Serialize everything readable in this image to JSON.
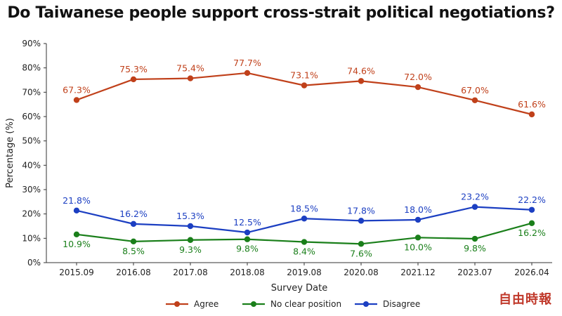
{
  "chart_data": {
    "type": "line",
    "title": "Do Taiwanese people support cross-strait political negotiations?",
    "xlabel": "Survey Date",
    "ylabel": "Percentage (%)",
    "ylim": [
      0,
      90
    ],
    "yticks": [
      "0%",
      "10%",
      "20%",
      "30%",
      "40%",
      "50%",
      "60%",
      "70%",
      "80%",
      "90%"
    ],
    "categories": [
      "2015.09",
      "2016.08",
      "2017.08",
      "2018.08",
      "2019.08",
      "2020.08",
      "2021.12",
      "2023.07",
      "2026.04"
    ],
    "series": [
      {
        "name": "Agree",
        "color": "#c0401a",
        "label_position": "above",
        "values": [
          67.3,
          75.3,
          75.4,
          77.7,
          73.1,
          74.6,
          72.0,
          67.0,
          61.6
        ],
        "point_values": [
          66.8,
          75.3,
          75.7,
          77.9,
          72.8,
          74.6,
          72.1,
          66.7,
          60.9
        ]
      },
      {
        "name": "No clear position",
        "color": "#1a7f1a",
        "label_position": "below",
        "values": [
          10.9,
          8.5,
          9.3,
          9.8,
          8.4,
          7.6,
          10.0,
          9.8,
          16.2
        ],
        "point_values": [
          11.6,
          8.7,
          9.3,
          9.6,
          8.5,
          7.7,
          10.3,
          9.8,
          16.2
        ]
      },
      {
        "name": "Disagree",
        "color": "#1c3fc2",
        "label_position": "above",
        "values": [
          21.8,
          16.2,
          15.3,
          12.5,
          18.5,
          17.8,
          18.0,
          23.2,
          22.2
        ],
        "point_values": [
          21.4,
          15.9,
          15.0,
          12.4,
          18.1,
          17.2,
          17.6,
          22.9,
          21.7
        ]
      }
    ],
    "grid": false,
    "legend_placement": "bottom"
  },
  "watermark": "自由時報"
}
